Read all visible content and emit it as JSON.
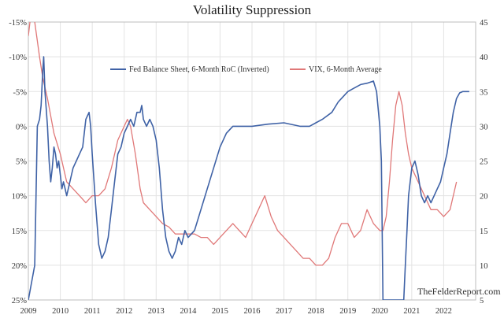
{
  "chart_data": {
    "type": "line",
    "title": "Volatility Suppression",
    "credit": "TheFelderReport.com",
    "grid": true,
    "legend_placement": "top",
    "x_ticks": [
      "2009",
      "2010",
      "2011",
      "2012",
      "2013",
      "2014",
      "2015",
      "2016",
      "2017",
      "2018",
      "2019",
      "2020",
      "2021",
      "2022"
    ],
    "xlim": [
      2009,
      2023
    ],
    "left_axis": {
      "ticks": [
        "-15%",
        "-10%",
        "-5%",
        "0%",
        "5%",
        "10%",
        "15%",
        "20%",
        "25%"
      ],
      "values": [
        -15,
        -10,
        -5,
        0,
        5,
        10,
        15,
        20,
        25
      ],
      "ylim": [
        -15,
        25
      ],
      "inverted": true
    },
    "right_axis": {
      "ticks": [
        "45",
        "40",
        "35",
        "30",
        "25",
        "20",
        "15",
        "10",
        "5"
      ],
      "values": [
        45,
        40,
        35,
        30,
        25,
        20,
        15,
        10,
        5
      ],
      "ylim": [
        5,
        45
      ]
    },
    "series": [
      {
        "name": "Fed Balance Sheet, 6-Month RoC (Inverted)",
        "axis": "left",
        "color": "#3f62a6",
        "x": [
          2009.0,
          2009.2,
          2009.28,
          2009.35,
          2009.4,
          2009.45,
          2009.48,
          2009.52,
          2009.6,
          2009.65,
          2009.7,
          2009.75,
          2009.8,
          2009.85,
          2009.9,
          2009.95,
          2010.0,
          2010.05,
          2010.1,
          2010.15,
          2010.2,
          2010.3,
          2010.4,
          2010.5,
          2010.6,
          2010.7,
          2010.8,
          2010.9,
          2010.95,
          2011.0,
          2011.1,
          2011.2,
          2011.3,
          2011.4,
          2011.5,
          2011.6,
          2011.7,
          2011.8,
          2011.9,
          2012.0,
          2012.1,
          2012.2,
          2012.3,
          2012.4,
          2012.5,
          2012.55,
          2012.6,
          2012.7,
          2012.8,
          2012.9,
          2013.0,
          2013.1,
          2013.2,
          2013.3,
          2013.4,
          2013.5,
          2013.6,
          2013.7,
          2013.8,
          2013.9,
          2014.0,
          2014.2,
          2014.4,
          2014.6,
          2014.8,
          2015.0,
          2015.2,
          2015.4,
          2015.6,
          2015.8,
          2016.0,
          2016.5,
          2017.0,
          2017.5,
          2017.8,
          2018.0,
          2018.2,
          2018.5,
          2018.7,
          2019.0,
          2019.2,
          2019.4,
          2019.6,
          2019.8,
          2019.9,
          2020.0,
          2020.05,
          2020.1,
          2020.15,
          2020.2,
          2020.25,
          2020.3,
          2020.35,
          2020.4,
          2020.45,
          2020.5,
          2020.55,
          2020.6,
          2020.65,
          2020.7,
          2020.75,
          2020.8,
          2020.85,
          2020.9,
          2021.0,
          2021.1,
          2021.2,
          2021.3,
          2021.4,
          2021.5,
          2021.6,
          2021.7,
          2021.8,
          2021.9,
          2022.0,
          2022.1,
          2022.2,
          2022.3,
          2022.4,
          2022.5,
          2022.6,
          2022.7,
          2022.8
        ],
        "values": [
          25,
          20,
          0,
          -1,
          -3,
          -8,
          -10,
          -5,
          0,
          5,
          8,
          6,
          3,
          4,
          6,
          5,
          7,
          9,
          8,
          9,
          10,
          8,
          6,
          5,
          4,
          3,
          -1,
          -2,
          0,
          4,
          11,
          17,
          19,
          18,
          16,
          12,
          8,
          4,
          3,
          1,
          0,
          -1,
          0,
          -2,
          -2,
          -3,
          -1,
          0,
          -1,
          0,
          2,
          6,
          12,
          16,
          18,
          19,
          18,
          16,
          17,
          15,
          16,
          15,
          12,
          9,
          6,
          3,
          1,
          0,
          0,
          0,
          0,
          -0.3,
          -0.5,
          0,
          0,
          -0.5,
          -1,
          -2,
          -3.5,
          -5,
          -5.5,
          -6,
          -6.2,
          -6.5,
          -5,
          0,
          5,
          25,
          25,
          25,
          25,
          25,
          25,
          25,
          25,
          25,
          25,
          25,
          25,
          25,
          25,
          20,
          15,
          10,
          6,
          5,
          7,
          10,
          11,
          10,
          11,
          10,
          9,
          8,
          6,
          4,
          1,
          -2,
          -4,
          -4.8,
          -5,
          -5,
          -5
        ]
      },
      {
        "name": "VIX, 6-Month Average",
        "axis": "right",
        "color": "#e07878",
        "x": [
          2009.0,
          2009.1,
          2009.2,
          2009.35,
          2009.45,
          2009.6,
          2009.8,
          2010.0,
          2010.2,
          2010.4,
          2010.6,
          2010.8,
          2011.0,
          2011.2,
          2011.4,
          2011.6,
          2011.8,
          2012.0,
          2012.1,
          2012.2,
          2012.35,
          2012.5,
          2012.6,
          2012.8,
          2013.0,
          2013.2,
          2013.4,
          2013.6,
          2013.8,
          2014.0,
          2014.2,
          2014.4,
          2014.6,
          2014.8,
          2015.0,
          2015.2,
          2015.4,
          2015.6,
          2015.8,
          2016.0,
          2016.2,
          2016.4,
          2016.6,
          2016.8,
          2017.0,
          2017.2,
          2017.4,
          2017.6,
          2017.8,
          2018.0,
          2018.2,
          2018.4,
          2018.6,
          2018.8,
          2019.0,
          2019.1,
          2019.2,
          2019.4,
          2019.6,
          2019.8,
          2020.0,
          2020.1,
          2020.2,
          2020.3,
          2020.4,
          2020.5,
          2020.6,
          2020.7,
          2020.8,
          2020.9,
          2021.0,
          2021.2,
          2021.4,
          2021.6,
          2021.8,
          2022.0,
          2022.2,
          2022.4
        ],
        "values": [
          43,
          47,
          45,
          40,
          37,
          34,
          29,
          26,
          22,
          21,
          20,
          19,
          20,
          20,
          21,
          24,
          28,
          30,
          31,
          30,
          26,
          21,
          19,
          18,
          17,
          16,
          15.5,
          14.5,
          14.5,
          14.5,
          14.5,
          14,
          14,
          13,
          14,
          15,
          16,
          15,
          14,
          16,
          18,
          20,
          17,
          15,
          14,
          13,
          12,
          11,
          11,
          10,
          10,
          11,
          14,
          16,
          16,
          15,
          14,
          15,
          18,
          16,
          15,
          15,
          17,
          22,
          28,
          33,
          35,
          33,
          29,
          26,
          24,
          22,
          20,
          18,
          18,
          17,
          18,
          22
        ]
      }
    ]
  }
}
